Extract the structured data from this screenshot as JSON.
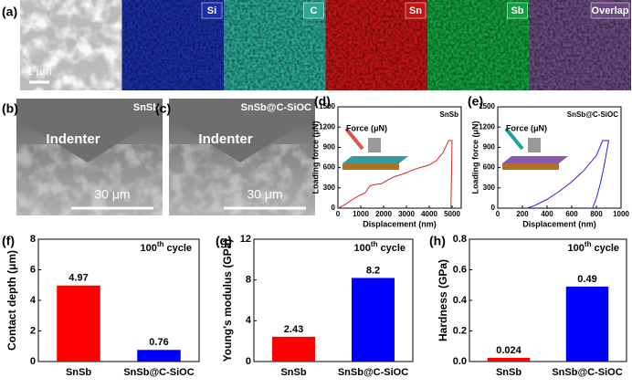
{
  "images": {
    "a": {
      "panel_label": "(a)",
      "maps": [
        "Si",
        "C",
        "Sn",
        "Sb",
        "Overlap"
      ],
      "scale": "1 μm"
    },
    "b": {
      "panel_label": "(b)",
      "name": "SnSb",
      "tip": "Indenter",
      "scale": "30 μm"
    },
    "c": {
      "panel_label": "(c)",
      "name": "SnSb@C-SiOC",
      "tip": "Indenter",
      "scale": "30 μm"
    }
  },
  "chart_data": [
    {
      "type": "line",
      "panel_label": "(d)",
      "title": "SnSb",
      "inset": "Force (μN)",
      "xlabel": "Displacement (nm)",
      "ylabel": "Loading force (μN)",
      "series": [
        {
          "color": "#e02020",
          "x": [
            0,
            300,
            600,
            900,
            1200,
            1400,
            1600,
            1900,
            2200,
            2500,
            2800,
            3100,
            3400,
            3700,
            4000,
            4300,
            4600,
            4850,
            5000,
            4950
          ],
          "values": [
            0,
            50,
            120,
            180,
            230,
            330,
            350,
            360,
            420,
            470,
            500,
            540,
            580,
            610,
            640,
            700,
            820,
            1000,
            1000,
            0
          ]
        }
      ],
      "xlim": [
        0,
        5400
      ],
      "xticks": [
        0,
        1000,
        2000,
        3000,
        4000,
        5000
      ],
      "ylim": [
        0,
        1500
      ],
      "yticks": [
        0,
        300,
        600,
        900,
        1200,
        1500
      ]
    },
    {
      "type": "line",
      "panel_label": "(e)",
      "title": "SnSb@C-SiOC",
      "inset": "Force (μN)",
      "xlabel": "Displacement (nm)",
      "ylabel": "Loading force (μN)",
      "series": [
        {
          "color": "#2020e0",
          "x": [
            240,
            300,
            400,
            500,
            600,
            700,
            800,
            850,
            900,
            880,
            860,
            830,
            800,
            770
          ],
          "values": [
            0,
            40,
            130,
            250,
            390,
            560,
            780,
            1000,
            1000,
            800,
            600,
            350,
            150,
            0
          ]
        }
      ],
      "xlim": [
        0,
        1000
      ],
      "xticks": [
        0,
        200,
        400,
        600,
        800,
        1000
      ],
      "ylim": [
        0,
        1500
      ],
      "yticks": [
        0,
        300,
        600,
        900,
        1200,
        1500
      ]
    },
    {
      "type": "bar",
      "panel_label": "(f)",
      "note": {
        "number": "100",
        "suffix": "th",
        "text": "cycle"
      },
      "ylabel": "Contact depth (μm)",
      "categories": [
        "SnSb",
        "SnSb@C-SiOC"
      ],
      "values": [
        4.97,
        0.76
      ],
      "value_labels": [
        "4.97",
        "0.76"
      ],
      "colors": [
        "#ff0000",
        "#0000ff"
      ],
      "ylim": [
        0,
        8
      ],
      "yticks": [
        0,
        2,
        4,
        6,
        8
      ]
    },
    {
      "type": "bar",
      "panel_label": "(g)",
      "note": {
        "number": "100",
        "suffix": "th",
        "text": "cycle"
      },
      "ylabel": "Young's modulus (GPa)",
      "categories": [
        "SnSb",
        "SnSb@C-SiOC"
      ],
      "values": [
        2.43,
        8.2
      ],
      "value_labels": [
        "2.43",
        "8.2"
      ],
      "colors": [
        "#ff0000",
        "#0000ff"
      ],
      "ylim": [
        0,
        12
      ],
      "yticks": [
        0,
        4,
        8,
        12
      ]
    },
    {
      "type": "bar",
      "panel_label": "(h)",
      "note": {
        "number": "100",
        "suffix": "th",
        "text": "cycle"
      },
      "ylabel": "Hardness (GPa)",
      "categories": [
        "SnSb",
        "SnSb@C-SiOC"
      ],
      "values": [
        0.024,
        0.49
      ],
      "value_labels": [
        "0.024",
        "0.49"
      ],
      "colors": [
        "#ff0000",
        "#0000ff"
      ],
      "ylim": [
        0,
        0.8
      ],
      "yticks": [
        {
          "value": 0,
          "label": "0.0"
        },
        0.2,
        0.4,
        0.6,
        0.8
      ]
    }
  ]
}
